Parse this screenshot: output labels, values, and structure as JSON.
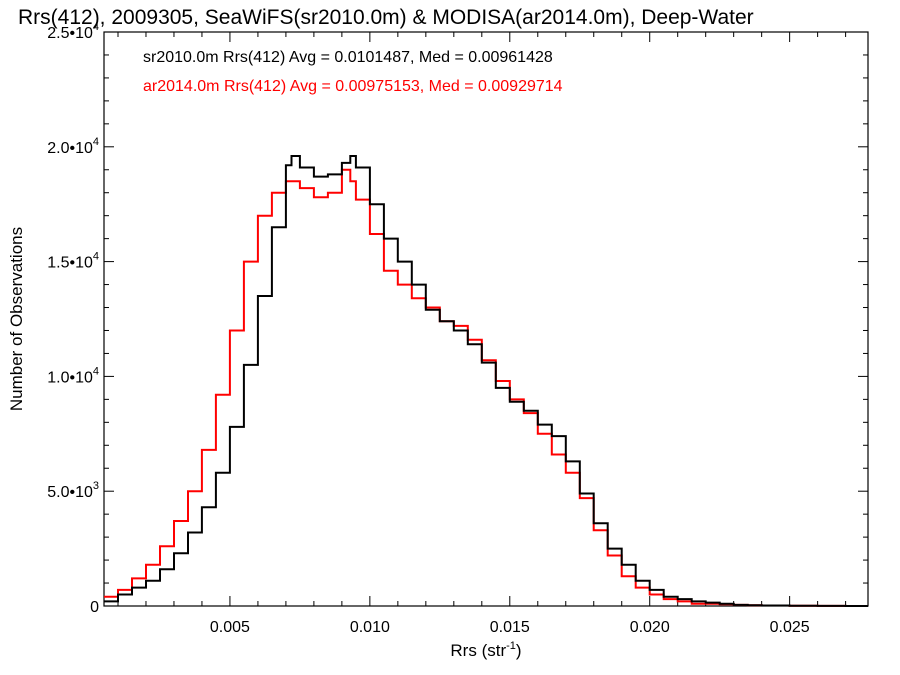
{
  "chart_data": {
    "type": "line",
    "title": "Rrs(412), 2009305, SeaWiFS(sr2010.0m) & MODISA(ar2014.0m), Deep-Water",
    "xlabel": "Rrs (str",
    "xlabel_sup": "-1",
    "xlabel_suffix": ")",
    "ylabel": "Number of Observations",
    "xlim": [
      0.0005,
      0.0278
    ],
    "ylim": [
      0,
      25000
    ],
    "grid": false,
    "legend_position": "top-left",
    "x_ticks": [
      0.005,
      0.01,
      0.015,
      0.02,
      0.025
    ],
    "x_tick_labels": [
      "0.005",
      "0.010",
      "0.015",
      "0.020",
      "0.025"
    ],
    "y_ticks": [
      {
        "value": 0,
        "mant": "0",
        "exp": ""
      },
      {
        "value": 5000,
        "mant": "5.0•1",
        "exp": ""
      },
      {
        "value": 10000,
        "mant": "1.0•1",
        "exp": ""
      },
      {
        "value": 15000,
        "mant": "1.5•1",
        "exp": ""
      },
      {
        "value": 20000,
        "mant": "2.0•1",
        "exp": ""
      },
      {
        "value": 25000,
        "mant": "2.5•1",
        "exp": ""
      }
    ],
    "y_tick_text": [
      "0",
      "5.0•10",
      "1.0•10",
      "1.5•10",
      "2.0•10",
      "2.5•10"
    ],
    "y_tick_exp": [
      "",
      "3",
      "4",
      "4",
      "4",
      "4"
    ],
    "series": [
      {
        "name": "sr2010.0m Rrs(412)",
        "stats_text": "sr2010.0m Rrs(412) Avg = 0.0101487, Med = 0.00961428",
        "color": "#000000",
        "x": [
          0.0005,
          0.001,
          0.0015,
          0.002,
          0.0025,
          0.003,
          0.0035,
          0.004,
          0.0045,
          0.005,
          0.0055,
          0.006,
          0.0065,
          0.007,
          0.0072,
          0.0075,
          0.008,
          0.0085,
          0.009,
          0.0093,
          0.0095,
          0.01,
          0.0105,
          0.011,
          0.0115,
          0.012,
          0.0125,
          0.013,
          0.0135,
          0.014,
          0.0145,
          0.015,
          0.0155,
          0.016,
          0.0165,
          0.017,
          0.0175,
          0.018,
          0.0185,
          0.019,
          0.0195,
          0.02,
          0.0205,
          0.021,
          0.0215,
          0.022,
          0.0225,
          0.023,
          0.0235,
          0.024,
          0.025,
          0.026,
          0.027,
          0.0278
        ],
        "values": [
          200,
          500,
          800,
          1100,
          1600,
          2300,
          3200,
          4300,
          5800,
          7800,
          10500,
          13500,
          16500,
          19200,
          19600,
          19100,
          18700,
          18800,
          19300,
          19600,
          19100,
          17500,
          16000,
          15000,
          14000,
          12900,
          12400,
          12000,
          11400,
          10600,
          9500,
          8900,
          8500,
          7900,
          7400,
          6300,
          4900,
          3600,
          2500,
          1800,
          1100,
          700,
          400,
          300,
          200,
          150,
          100,
          50,
          30,
          20,
          10,
          5,
          0,
          0
        ]
      },
      {
        "name": "ar2014.0m Rrs(412)",
        "stats_text": "ar2014.0m Rrs(412) Avg = 0.00975153, Med = 0.00929714",
        "color": "#ff0000",
        "x": [
          0.0005,
          0.001,
          0.0015,
          0.002,
          0.0025,
          0.003,
          0.0035,
          0.004,
          0.0045,
          0.005,
          0.0055,
          0.006,
          0.0065,
          0.007,
          0.0075,
          0.008,
          0.0085,
          0.009,
          0.0093,
          0.0095,
          0.01,
          0.0105,
          0.011,
          0.0115,
          0.012,
          0.0125,
          0.013,
          0.0135,
          0.014,
          0.0145,
          0.015,
          0.0155,
          0.016,
          0.0165,
          0.017,
          0.0175,
          0.018,
          0.0185,
          0.019,
          0.0195,
          0.02,
          0.0205,
          0.021,
          0.0215,
          0.022,
          0.0225,
          0.023,
          0.0235,
          0.024,
          0.025,
          0.026,
          0.027,
          0.0278
        ],
        "values": [
          400,
          700,
          1200,
          1800,
          2600,
          3700,
          5000,
          6800,
          9200,
          12000,
          15000,
          17000,
          18000,
          18500,
          18200,
          17800,
          18000,
          19000,
          18500,
          17700,
          16200,
          14600,
          14000,
          13400,
          13000,
          12400,
          12200,
          11600,
          10700,
          9800,
          9000,
          8400,
          7500,
          6600,
          5800,
          4700,
          3300,
          2200,
          1300,
          800,
          500,
          300,
          200,
          100,
          100,
          80,
          50,
          30,
          20,
          10,
          5,
          0,
          0
        ]
      }
    ]
  }
}
